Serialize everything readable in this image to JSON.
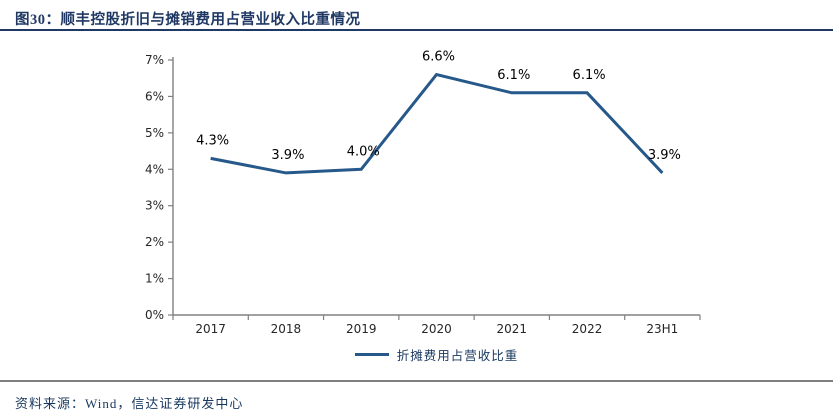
{
  "header": {
    "title": "图30：顺丰控股折旧与摊销费用占营业收入比重情况",
    "rule_color": "#1f3864"
  },
  "footer": {
    "source_label": "资料来源：Wind，信达证券研发中心",
    "rule_color": "#7f7f7f"
  },
  "chart_data": {
    "type": "line",
    "title": "顺丰控股折旧与摊销费用占营业收入比重情况",
    "categories": [
      "2017",
      "2018",
      "2019",
      "2020",
      "2021",
      "2022",
      "23H1"
    ],
    "series": [
      {
        "name": "折摊费用占营收比重",
        "values": [
          4.3,
          3.9,
          4.0,
          6.6,
          6.1,
          6.1,
          3.9
        ]
      }
    ],
    "data_labels": [
      "4.3%",
      "3.9%",
      "4.0%",
      "6.6%",
      "6.1%",
      "6.1%",
      "3.9%"
    ],
    "xlabel": "",
    "ylabel": "",
    "ylim": [
      0,
      7
    ],
    "ytick_step": 1,
    "ytick_labels": [
      "0%",
      "1%",
      "2%",
      "3%",
      "4%",
      "5%",
      "6%",
      "7%"
    ],
    "grid": false,
    "legend_position": "bottom",
    "line_color": "#26598a",
    "axis_color": "#808080",
    "tick_label_color": "#262626",
    "data_label_color": "#000000"
  }
}
